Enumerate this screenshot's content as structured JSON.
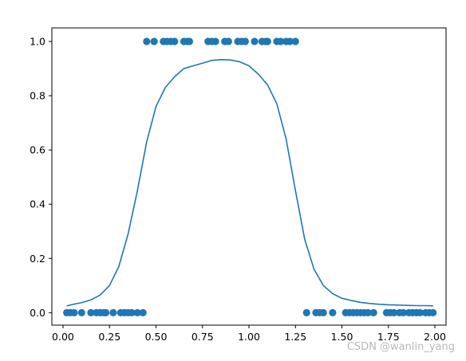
{
  "chart_data": {
    "type": "scatter",
    "xlim": [
      -0.06,
      2.06
    ],
    "ylim": [
      -0.046,
      1.05
    ],
    "xticks": [
      "0.00",
      "0.25",
      "0.50",
      "0.75",
      "1.00",
      "1.25",
      "1.50",
      "1.75",
      "2.00"
    ],
    "yticks": [
      "0.0",
      "0.2",
      "0.4",
      "0.6",
      "0.8",
      "1.0"
    ],
    "grid": false,
    "colors": {
      "points": "#1f77b4",
      "line": "#1f77b4"
    },
    "series": [
      {
        "kind": "scatter",
        "x": [
          0.02,
          0.04,
          0.06,
          0.1,
          0.15,
          0.18,
          0.2,
          0.22,
          0.23,
          0.27,
          0.31,
          0.33,
          0.35,
          0.37,
          0.4,
          0.43,
          0.45,
          0.49,
          0.54,
          0.56,
          0.58,
          0.6,
          0.65,
          0.67,
          0.68,
          0.78,
          0.8,
          0.82,
          0.87,
          0.89,
          0.94,
          0.96,
          0.98,
          1.03,
          1.07,
          1.09,
          1.1,
          1.15,
          1.17,
          1.2,
          1.22,
          1.25,
          1.31,
          1.36,
          1.38,
          1.4,
          1.45,
          1.52,
          1.54,
          1.56,
          1.58,
          1.6,
          1.62,
          1.64,
          1.67,
          1.74,
          1.76,
          1.78,
          1.81,
          1.83,
          1.86,
          1.88,
          1.9,
          1.92,
          1.95,
          1.97,
          1.99
        ],
        "y": [
          0,
          0,
          0,
          0,
          0,
          0,
          0,
          0,
          0,
          0,
          0,
          0,
          0,
          0,
          0,
          0,
          1,
          1,
          1,
          1,
          1,
          1,
          1,
          1,
          1,
          1,
          1,
          1,
          1,
          1,
          1,
          1,
          1,
          1,
          1,
          1,
          1,
          1,
          1,
          1,
          1,
          1,
          0,
          0,
          0,
          0,
          0,
          0,
          0,
          0,
          0,
          0,
          0,
          0,
          0,
          0,
          0,
          0,
          0,
          0,
          0,
          0,
          0,
          0,
          0,
          0,
          0
        ]
      },
      {
        "kind": "line",
        "x": [
          0.02,
          0.05,
          0.1,
          0.15,
          0.2,
          0.25,
          0.3,
          0.35,
          0.4,
          0.45,
          0.5,
          0.55,
          0.6,
          0.65,
          0.7,
          0.75,
          0.8,
          0.85,
          0.9,
          0.95,
          1.0,
          1.05,
          1.1,
          1.15,
          1.2,
          1.25,
          1.3,
          1.35,
          1.4,
          1.45,
          1.5,
          1.55,
          1.6,
          1.65,
          1.7,
          1.75,
          1.8,
          1.85,
          1.9,
          1.95,
          1.99
        ],
        "y": [
          0.025,
          0.03,
          0.037,
          0.047,
          0.065,
          0.1,
          0.17,
          0.29,
          0.45,
          0.63,
          0.76,
          0.83,
          0.87,
          0.9,
          0.91,
          0.92,
          0.93,
          0.933,
          0.932,
          0.925,
          0.91,
          0.88,
          0.84,
          0.77,
          0.64,
          0.45,
          0.27,
          0.16,
          0.1,
          0.07,
          0.053,
          0.045,
          0.038,
          0.034,
          0.031,
          0.029,
          0.028,
          0.027,
          0.026,
          0.026,
          0.025
        ]
      }
    ]
  },
  "watermark": "CSDN @wanlin_yang"
}
